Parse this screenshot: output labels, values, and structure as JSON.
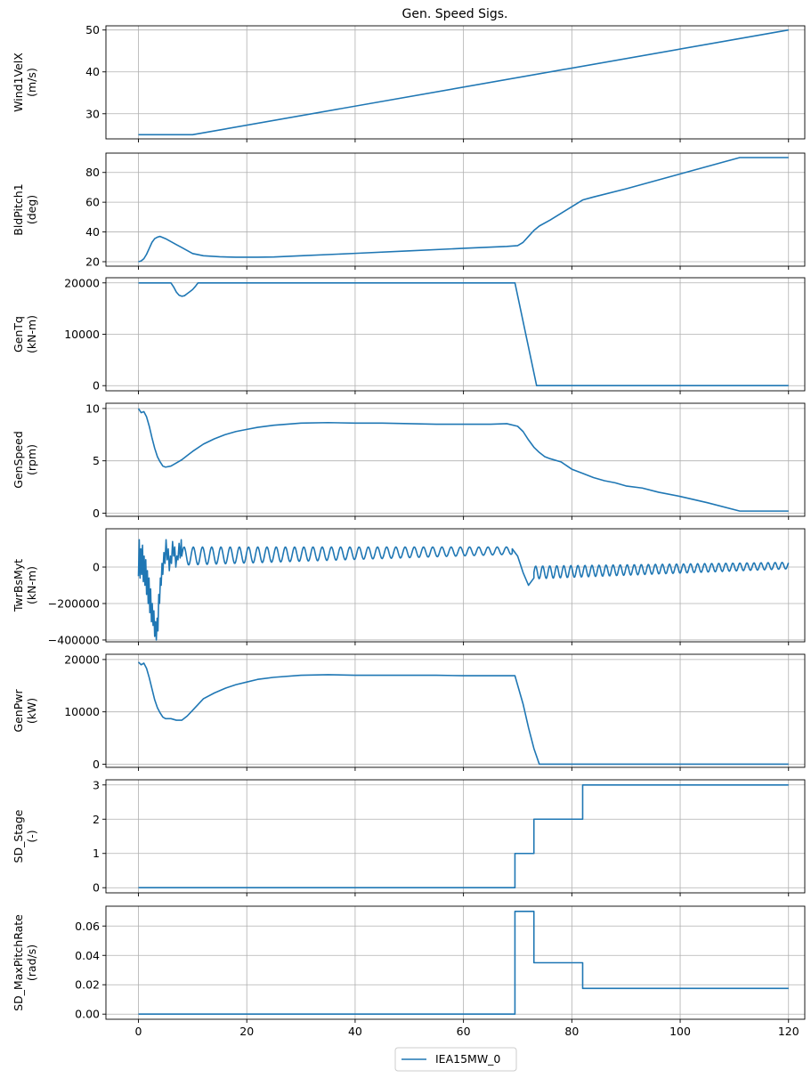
{
  "figure": {
    "title": "Gen. Speed Sigs.",
    "legend": {
      "entries": [
        "IEA15MW_0"
      ],
      "placement": "bottom-center"
    },
    "series_color": "#1f77b4",
    "grid_color": "#b0b0b0"
  },
  "chart_data": [
    {
      "type": "line",
      "ylabel": [
        "Wind1VelX",
        "(m/s)"
      ],
      "xlim": [
        -6,
        123
      ],
      "ylim": [
        24.0,
        51.0
      ],
      "yticks": [
        30,
        40,
        50
      ],
      "yticklabels": [
        "30",
        "40",
        "50"
      ],
      "xticks": [
        0,
        20,
        40,
        60,
        80,
        100,
        120
      ],
      "xticklabels": [],
      "grid": true,
      "series": [
        {
          "name": "IEA15MW_0",
          "x": [
            0,
            10,
            120
          ],
          "y": [
            25,
            25,
            50
          ]
        }
      ]
    },
    {
      "type": "line",
      "ylabel": [
        "BldPitch1",
        "(deg)"
      ],
      "xlim": [
        -6,
        123
      ],
      "ylim": [
        17.0,
        93.0
      ],
      "yticks": [
        20,
        40,
        60,
        80
      ],
      "yticklabels": [
        "20",
        "40",
        "60",
        "80"
      ],
      "xticks": [
        0,
        20,
        40,
        60,
        80,
        100,
        120
      ],
      "xticklabels": [],
      "grid": true,
      "series": [
        {
          "name": "IEA15MW_0",
          "x": [
            0,
            0.5,
            1,
            1.5,
            2,
            2.5,
            3,
            3.5,
            4,
            5,
            6,
            7,
            8,
            9,
            10,
            12,
            15,
            18,
            20,
            22,
            25,
            30,
            40,
            50,
            60,
            68,
            70,
            71,
            72,
            73,
            74,
            76,
            78,
            80,
            82,
            84,
            90,
            100,
            111,
            120
          ],
          "y": [
            20,
            20.5,
            22,
            25,
            29,
            33,
            35.5,
            36.5,
            37,
            35.5,
            33.5,
            31.5,
            29.5,
            27.5,
            25.5,
            24,
            23.3,
            23,
            23,
            23,
            23.2,
            24,
            25.6,
            27.3,
            29,
            30.3,
            30.8,
            33,
            37,
            41,
            44,
            48,
            52.5,
            57,
            61.5,
            63.5,
            69,
            79,
            90,
            90
          ]
        }
      ]
    },
    {
      "type": "line",
      "ylabel": [
        "GenTq",
        "(kN-m)"
      ],
      "xlim": [
        -6,
        123
      ],
      "ylim": [
        -1000,
        21000
      ],
      "yticks": [
        0,
        10000,
        20000
      ],
      "yticklabels": [
        "0",
        "10000",
        "20000"
      ],
      "xticks": [
        0,
        20,
        40,
        60,
        80,
        100,
        120
      ],
      "xticklabels": [],
      "grid": true,
      "series": [
        {
          "name": "IEA15MW_0",
          "x": [
            0,
            6,
            6.5,
            7,
            7.5,
            8,
            8.5,
            9,
            9.5,
            10,
            10.5,
            11,
            69.5,
            73.5,
            120
          ],
          "y": [
            20000,
            20000,
            19200,
            18200,
            17600,
            17400,
            17500,
            17900,
            18300,
            18700,
            19300,
            20000,
            20000,
            0,
            0
          ]
        }
      ]
    },
    {
      "type": "line",
      "ylabel": [
        "GenSpeed",
        "(rpm)"
      ],
      "xlim": [
        -6,
        123
      ],
      "ylim": [
        -0.3,
        10.5
      ],
      "yticks": [
        0,
        5,
        10
      ],
      "yticklabels": [
        "0",
        "5",
        "10"
      ],
      "xticks": [
        0,
        20,
        40,
        60,
        80,
        100,
        120
      ],
      "xticklabels": [],
      "grid": true,
      "series": [
        {
          "name": "IEA15MW_0",
          "x": [
            0,
            0.5,
            1,
            1.5,
            2,
            2.5,
            3,
            3.5,
            4,
            4.5,
            5,
            6,
            7,
            8,
            9,
            10,
            12,
            14,
            16,
            18,
            20,
            22,
            25,
            30,
            35,
            40,
            45,
            50,
            55,
            60,
            65,
            68,
            70,
            71,
            72,
            73,
            74,
            75,
            76,
            78,
            80,
            82,
            84,
            86,
            88,
            90,
            93,
            96,
            100,
            105,
            111,
            120
          ],
          "y": [
            10,
            9.6,
            9.7,
            9.2,
            8.3,
            7.2,
            6.2,
            5.4,
            4.9,
            4.5,
            4.4,
            4.5,
            4.8,
            5.1,
            5.5,
            5.9,
            6.6,
            7.1,
            7.5,
            7.8,
            8.0,
            8.2,
            8.4,
            8.6,
            8.65,
            8.6,
            8.6,
            8.55,
            8.5,
            8.5,
            8.5,
            8.55,
            8.3,
            7.8,
            7.0,
            6.3,
            5.8,
            5.4,
            5.2,
            4.9,
            4.2,
            3.8,
            3.4,
            3.1,
            2.9,
            2.6,
            2.4,
            2.0,
            1.6,
            1.0,
            0.2,
            0.2
          ]
        }
      ]
    },
    {
      "type": "line",
      "ylabel": [
        "TwrBsMyt",
        "(kN-m)"
      ],
      "xlim": [
        -6,
        123
      ],
      "ylim": [
        -410000,
        210000
      ],
      "yticks": [
        -400000,
        -200000,
        0
      ],
      "yticklabels": [
        "−400000",
        "−200000",
        "0"
      ],
      "xticks": [
        0,
        20,
        40,
        60,
        80,
        100,
        120
      ],
      "xticklabels": [],
      "grid": true,
      "series": [
        {
          "name": "IEA15MW_0",
          "x": [
            0,
            0.15,
            0.3,
            0.45,
            0.6,
            0.75,
            0.9,
            1.05,
            1.2,
            1.35,
            1.5,
            1.65,
            1.8,
            1.95,
            2.1,
            2.25,
            2.4,
            2.55,
            2.7,
            2.85,
            3.0,
            3.15,
            3.3,
            3.45,
            3.6,
            3.75,
            3.9,
            4.05,
            4.2,
            4.35,
            4.5,
            4.7,
            4.9,
            5.1,
            5.3,
            5.5,
            5.7,
            5.9,
            6.1,
            6.3,
            6.5,
            6.7,
            6.9,
            7.1,
            7.3,
            7.5,
            7.7,
            7.9
          ],
          "y": [
            -50000,
            150000,
            -60000,
            100000,
            -40000,
            120000,
            -80000,
            60000,
            -100000,
            40000,
            -150000,
            -20000,
            -200000,
            -60000,
            -250000,
            -120000,
            -300000,
            -200000,
            -320000,
            -240000,
            -380000,
            -300000,
            -400000,
            -280000,
            -350000,
            -150000,
            -200000,
            -60000,
            -100000,
            20000,
            -40000,
            80000,
            20000,
            150000,
            40000,
            100000,
            -20000,
            60000,
            20000,
            140000,
            60000,
            110000,
            0,
            60000,
            40000,
            130000,
            50000,
            150000
          ],
          "oscillation": {
            "x_start": 8,
            "x_end": 69,
            "offset_start": 60000,
            "offset_end": 90000,
            "amp_start": 50000,
            "amp_end": 20000,
            "period": 1.7
          },
          "dip": {
            "x": [
              69,
              70,
              71,
              72,
              73
            ],
            "y": [
              100000,
              60000,
              -30000,
              -100000,
              -60000
            ]
          },
          "oscillation2": {
            "x_start": 73,
            "x_end": 120,
            "offset_start": -30000,
            "offset_end": 8000,
            "amp_start": 35000,
            "amp_end": 18000,
            "period": 1.3
          }
        }
      ]
    },
    {
      "type": "line",
      "ylabel": [
        "GenPwr",
        "(kW)"
      ],
      "xlim": [
        -6,
        123
      ],
      "ylim": [
        -600,
        21000
      ],
      "yticks": [
        0,
        10000,
        20000
      ],
      "yticklabels": [
        "0",
        "10000",
        "20000"
      ],
      "xticks": [
        0,
        20,
        40,
        60,
        80,
        100,
        120
      ],
      "xticklabels": [],
      "grid": true,
      "series": [
        {
          "name": "IEA15MW_0",
          "x": [
            0,
            0.5,
            1,
            1.5,
            2,
            2.5,
            3,
            3.5,
            4,
            4.5,
            5,
            6,
            7,
            8,
            9,
            10,
            11,
            12,
            14,
            16,
            18,
            20,
            22,
            25,
            30,
            35,
            40,
            45,
            50,
            55,
            60,
            65,
            69.5,
            71,
            72,
            73,
            74,
            120
          ],
          "y": [
            19500,
            19000,
            19300,
            18300,
            16500,
            14400,
            12300,
            10800,
            9800,
            9000,
            8700,
            8700,
            8400,
            8400,
            9200,
            10300,
            11400,
            12500,
            13600,
            14500,
            15200,
            15700,
            16200,
            16600,
            17000,
            17100,
            17000,
            17000,
            17000,
            17000,
            16900,
            16900,
            16900,
            11500,
            7000,
            3000,
            0,
            0
          ]
        }
      ]
    },
    {
      "type": "line",
      "ylabel": [
        "SD_Stage",
        "(-)"
      ],
      "xlim": [
        -6,
        123
      ],
      "ylim": [
        -0.15,
        3.15
      ],
      "yticks": [
        0,
        1,
        2,
        3
      ],
      "yticklabels": [
        "0",
        "1",
        "2",
        "3"
      ],
      "xticks": [
        0,
        20,
        40,
        60,
        80,
        100,
        120
      ],
      "xticklabels": [],
      "grid": true,
      "series": [
        {
          "name": "IEA15MW_0",
          "x": [
            0,
            69.5,
            69.5,
            73,
            73,
            82,
            82,
            120
          ],
          "y": [
            0,
            0,
            1,
            1,
            2,
            2,
            3,
            3
          ]
        }
      ]
    },
    {
      "type": "line",
      "ylabel": [
        "SD_MaxPitchRate",
        "(rad/s)"
      ],
      "xlim": [
        -6,
        123
      ],
      "ylim": [
        -0.0035,
        0.0735
      ],
      "yticks": [
        0,
        0.02,
        0.04,
        0.06
      ],
      "yticklabels": [
        "0.00",
        "0.02",
        "0.04",
        "0.06"
      ],
      "xticks": [
        0,
        20,
        40,
        60,
        80,
        100,
        120
      ],
      "xticklabels": [
        "0",
        "20",
        "40",
        "60",
        "80",
        "100",
        "120"
      ],
      "grid": true,
      "series": [
        {
          "name": "IEA15MW_0",
          "x": [
            0,
            69.5,
            69.5,
            73,
            73,
            82,
            82,
            120
          ],
          "y": [
            0,
            0,
            0.07,
            0.07,
            0.035,
            0.035,
            0.0175,
            0.0175
          ]
        }
      ]
    }
  ]
}
